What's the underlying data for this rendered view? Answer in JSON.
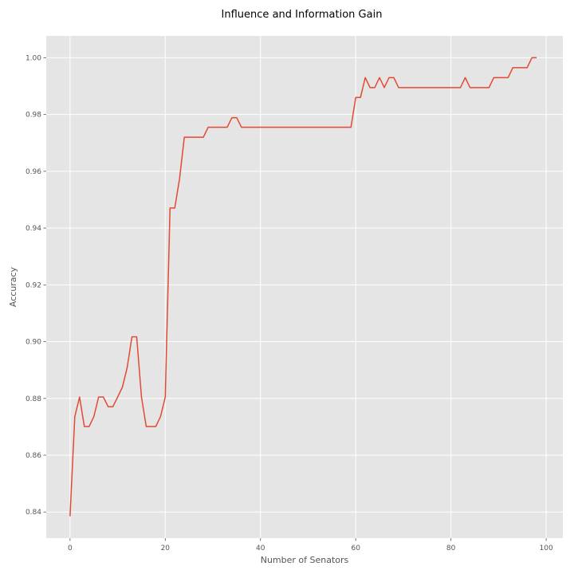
{
  "chart_data": {
    "type": "line",
    "title": "Influence and Information Gain",
    "xlabel": "Number of Senators",
    "ylabel": "Accuracy",
    "xlim": [
      -5,
      103.5
    ],
    "ylim": [
      0.8308,
      1.0077
    ],
    "xticks": [
      0,
      20,
      40,
      60,
      80,
      100
    ],
    "yticks": [
      0.84,
      0.86,
      0.88,
      0.9,
      0.92,
      0.94,
      0.96,
      0.98,
      1.0
    ],
    "ytick_labels": [
      "0.84",
      "0.86",
      "0.88",
      "0.90",
      "0.92",
      "0.94",
      "0.96",
      "0.98",
      "1.00"
    ],
    "grid": true,
    "background_color": "#E5E5E5",
    "series": [
      {
        "color": "#E24A33",
        "points": [
          [
            0,
            0.8385
          ],
          [
            1,
            0.8736
          ],
          [
            2,
            0.8805
          ],
          [
            3,
            0.8701
          ],
          [
            4,
            0.8701
          ],
          [
            5,
            0.8736
          ],
          [
            6,
            0.8805
          ],
          [
            7,
            0.8805
          ],
          [
            8,
            0.8771
          ],
          [
            9,
            0.8771
          ],
          [
            10,
            0.8805
          ],
          [
            11,
            0.884
          ],
          [
            12,
            0.8909
          ],
          [
            13,
            0.9017
          ],
          [
            14,
            0.9017
          ],
          [
            15,
            0.8805
          ],
          [
            16,
            0.8701
          ],
          [
            17,
            0.8701
          ],
          [
            18,
            0.8701
          ],
          [
            19,
            0.8736
          ],
          [
            20,
            0.8805
          ],
          [
            21,
            0.9471
          ],
          [
            22,
            0.9471
          ],
          [
            23,
            0.9574
          ],
          [
            24,
            0.972
          ],
          [
            25,
            0.972
          ],
          [
            26,
            0.972
          ],
          [
            27,
            0.972
          ],
          [
            28,
            0.972
          ],
          [
            29,
            0.9755
          ],
          [
            30,
            0.9755
          ],
          [
            31,
            0.9755
          ],
          [
            32,
            0.9755
          ],
          [
            33,
            0.9755
          ],
          [
            34,
            0.9789
          ],
          [
            35,
            0.9789
          ],
          [
            36,
            0.9755
          ],
          [
            37,
            0.9755
          ],
          [
            38,
            0.9755
          ],
          [
            39,
            0.9755
          ],
          [
            40,
            0.9755
          ],
          [
            41,
            0.9755
          ],
          [
            42,
            0.9755
          ],
          [
            43,
            0.9755
          ],
          [
            44,
            0.9755
          ],
          [
            45,
            0.9755
          ],
          [
            46,
            0.9755
          ],
          [
            47,
            0.9755
          ],
          [
            48,
            0.9755
          ],
          [
            49,
            0.9755
          ],
          [
            50,
            0.9755
          ],
          [
            51,
            0.9755
          ],
          [
            52,
            0.9755
          ],
          [
            53,
            0.9755
          ],
          [
            54,
            0.9755
          ],
          [
            55,
            0.9755
          ],
          [
            56,
            0.9755
          ],
          [
            57,
            0.9755
          ],
          [
            58,
            0.9755
          ],
          [
            59,
            0.9755
          ],
          [
            60,
            0.986
          ],
          [
            61,
            0.986
          ],
          [
            62,
            0.993
          ],
          [
            63,
            0.9895
          ],
          [
            64,
            0.9895
          ],
          [
            65,
            0.993
          ],
          [
            66,
            0.9895
          ],
          [
            67,
            0.993
          ],
          [
            68,
            0.993
          ],
          [
            69,
            0.9895
          ],
          [
            70,
            0.9895
          ],
          [
            71,
            0.9895
          ],
          [
            72,
            0.9895
          ],
          [
            73,
            0.9895
          ],
          [
            74,
            0.9895
          ],
          [
            75,
            0.9895
          ],
          [
            76,
            0.9895
          ],
          [
            77,
            0.9895
          ],
          [
            78,
            0.9895
          ],
          [
            79,
            0.9895
          ],
          [
            80,
            0.9895
          ],
          [
            81,
            0.9895
          ],
          [
            82,
            0.9895
          ],
          [
            83,
            0.993
          ],
          [
            84,
            0.9895
          ],
          [
            85,
            0.9895
          ],
          [
            86,
            0.9895
          ],
          [
            87,
            0.9895
          ],
          [
            88,
            0.9895
          ],
          [
            89,
            0.993
          ],
          [
            90,
            0.993
          ],
          [
            91,
            0.993
          ],
          [
            92,
            0.993
          ],
          [
            93,
            0.9965
          ],
          [
            94,
            0.9965
          ],
          [
            95,
            0.9965
          ],
          [
            96,
            0.9965
          ],
          [
            97,
            1.0
          ],
          [
            98,
            1.0
          ]
        ]
      }
    ]
  }
}
